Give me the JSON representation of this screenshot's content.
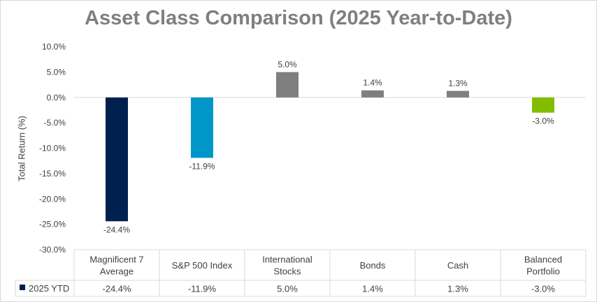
{
  "chart_data": {
    "type": "bar",
    "title": "Asset Class Comparison (2025 Year-to-Date)",
    "ylabel": "Total Return (%)",
    "xlabel": "",
    "ylim": [
      -30,
      10
    ],
    "yticks": [
      10,
      5,
      0,
      -5,
      -10,
      -15,
      -20,
      -25,
      -30
    ],
    "ytick_labels": [
      "10.0%",
      "5.0%",
      "0.0%",
      "-5.0%",
      "-10.0%",
      "-15.0%",
      "-20.0%",
      "-25.0%",
      "-30.0%"
    ],
    "grid": false,
    "categories": [
      [
        "Magnificent 7",
        "Average"
      ],
      [
        "S&P 500 Index"
      ],
      [
        "International",
        "Stocks"
      ],
      [
        "Bonds"
      ],
      [
        "Cash"
      ],
      [
        "Balanced",
        "Portfolio"
      ]
    ],
    "series": [
      {
        "name": "2025 YTD",
        "values": [
          -24.4,
          -11.9,
          5.0,
          1.4,
          1.3,
          -3.0
        ],
        "labels": [
          "-24.4%",
          "-11.9%",
          "5.0%",
          "1.4%",
          "1.3%",
          "-3.0%"
        ],
        "colors": [
          "#002050",
          "#0096c8",
          "#7f7f7f",
          "#7f7f7f",
          "#7f7f7f",
          "#84bd00"
        ]
      }
    ],
    "legend": {
      "placement": "data-table",
      "marker_color": "#002050"
    },
    "data_table": true
  }
}
